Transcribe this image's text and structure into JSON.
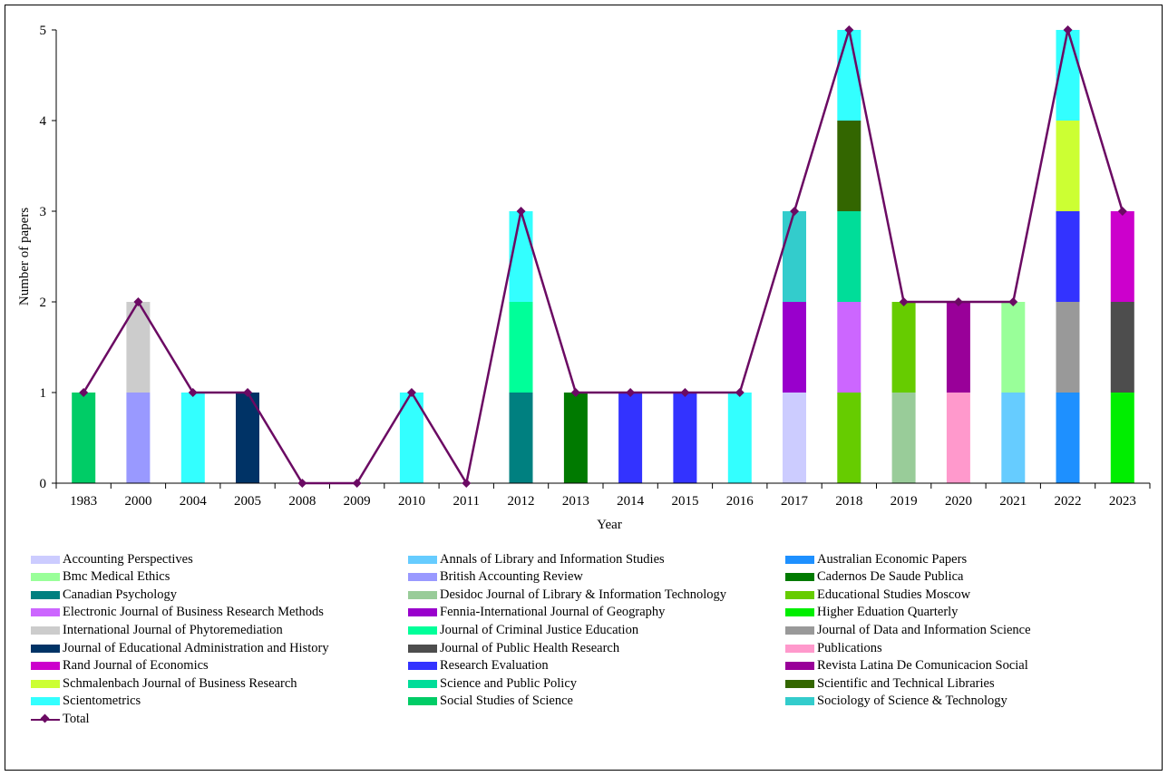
{
  "chart_data": {
    "type": "bar",
    "stacked": true,
    "xlabel": "Year",
    "ylabel": "Number of papers",
    "ylim": [
      0,
      5
    ],
    "yticks": [
      "0",
      "1",
      "2",
      "3",
      "4",
      "5"
    ],
    "grid": false,
    "legend_position": "bottom",
    "categories": [
      "1983",
      "2000",
      "2004",
      "2005",
      "2008",
      "2009",
      "2010",
      "2011",
      "2012",
      "2013",
      "2014",
      "2015",
      "2016",
      "2017",
      "2018",
      "2019",
      "2020",
      "2021",
      "2022",
      "2023"
    ],
    "series": [
      {
        "name": "Accounting Perspectives",
        "color": "#ccccff",
        "values": [
          0,
          0,
          0,
          0,
          0,
          0,
          0,
          0,
          0,
          0,
          0,
          0,
          0,
          1,
          0,
          0,
          0,
          0,
          0,
          0
        ]
      },
      {
        "name": "Annals of Library and Information Studies",
        "color": "#66ccff",
        "values": [
          0,
          0,
          0,
          0,
          0,
          0,
          0,
          0,
          0,
          0,
          0,
          0,
          0,
          0,
          0,
          0,
          0,
          1,
          0,
          0
        ]
      },
      {
        "name": "Australian Economic Papers",
        "color": "#1e90ff",
        "values": [
          0,
          0,
          0,
          0,
          0,
          0,
          0,
          0,
          0,
          0,
          0,
          0,
          0,
          0,
          0,
          0,
          0,
          0,
          1,
          0
        ]
      },
      {
        "name": "Bmc Medical Ethics",
        "color": "#99ff99",
        "values": [
          0,
          0,
          0,
          0,
          0,
          0,
          0,
          0,
          0,
          0,
          0,
          0,
          0,
          0,
          0,
          0,
          0,
          1,
          0,
          0
        ]
      },
      {
        "name": "British Accounting Review",
        "color": "#9999ff",
        "values": [
          0,
          1,
          0,
          0,
          0,
          0,
          0,
          0,
          0,
          0,
          0,
          0,
          0,
          0,
          0,
          0,
          0,
          0,
          0,
          0
        ]
      },
      {
        "name": "Cadernos De Saude Publica",
        "color": "#007a00",
        "values": [
          0,
          0,
          0,
          0,
          0,
          0,
          0,
          0,
          0,
          1,
          0,
          0,
          0,
          0,
          0,
          0,
          0,
          0,
          0,
          0
        ]
      },
      {
        "name": "Canadian Psychology",
        "color": "#008080",
        "values": [
          0,
          0,
          0,
          0,
          0,
          0,
          0,
          0,
          1,
          0,
          0,
          0,
          0,
          0,
          0,
          0,
          0,
          0,
          0,
          0
        ]
      },
      {
        "name": "Desidoc Journal of Library & Information Technology",
        "color": "#99cc99",
        "values": [
          0,
          0,
          0,
          0,
          0,
          0,
          0,
          0,
          0,
          0,
          0,
          0,
          0,
          0,
          0,
          1,
          0,
          0,
          0,
          0
        ]
      },
      {
        "name": "Educational Studies Moscow",
        "color": "#66cc00",
        "values": [
          0,
          0,
          0,
          0,
          0,
          0,
          0,
          0,
          0,
          0,
          0,
          0,
          0,
          0,
          1,
          1,
          0,
          0,
          0,
          0
        ]
      },
      {
        "name": "Electronic Journal of Business Research Methods",
        "color": "#cc66ff",
        "values": [
          0,
          0,
          0,
          0,
          0,
          0,
          0,
          0,
          0,
          0,
          0,
          0,
          0,
          0,
          1,
          0,
          0,
          0,
          0,
          0
        ]
      },
      {
        "name": "Fennia-International Journal of Geography",
        "color": "#9900cc",
        "values": [
          0,
          0,
          0,
          0,
          0,
          0,
          0,
          0,
          0,
          0,
          0,
          0,
          0,
          1,
          0,
          0,
          0,
          0,
          0,
          0
        ]
      },
      {
        "name": "Higher Eduation Quarterly",
        "color": "#00ee00",
        "values": [
          0,
          0,
          0,
          0,
          0,
          0,
          0,
          0,
          0,
          0,
          0,
          0,
          0,
          0,
          0,
          0,
          0,
          0,
          0,
          1
        ]
      },
      {
        "name": "International Journal of Phytoremediation",
        "color": "#cccccc",
        "values": [
          0,
          1,
          0,
          0,
          0,
          0,
          0,
          0,
          0,
          0,
          0,
          0,
          0,
          0,
          0,
          0,
          0,
          0,
          0,
          0
        ]
      },
      {
        "name": "Journal of Criminal Justice Education",
        "color": "#00ff99",
        "values": [
          0,
          0,
          0,
          0,
          0,
          0,
          0,
          0,
          1,
          0,
          0,
          0,
          0,
          0,
          0,
          0,
          0,
          0,
          0,
          0
        ]
      },
      {
        "name": "Journal of Data and Information Science",
        "color": "#999999",
        "values": [
          0,
          0,
          0,
          0,
          0,
          0,
          0,
          0,
          0,
          0,
          0,
          0,
          0,
          0,
          0,
          0,
          0,
          0,
          1,
          0
        ]
      },
      {
        "name": "Journal of Educational Administration and History",
        "color": "#003366",
        "values": [
          0,
          0,
          0,
          1,
          0,
          0,
          0,
          0,
          0,
          0,
          0,
          0,
          0,
          0,
          0,
          0,
          0,
          0,
          0,
          0
        ]
      },
      {
        "name": "Journal of Public Health Research",
        "color": "#4d4d4d",
        "values": [
          0,
          0,
          0,
          0,
          0,
          0,
          0,
          0,
          0,
          0,
          0,
          0,
          0,
          0,
          0,
          0,
          0,
          0,
          0,
          1
        ]
      },
      {
        "name": "Publications",
        "color": "#ff99cc",
        "values": [
          0,
          0,
          0,
          0,
          0,
          0,
          0,
          0,
          0,
          0,
          0,
          0,
          0,
          0,
          0,
          0,
          1,
          0,
          0,
          0
        ]
      },
      {
        "name": "Rand Journal of Economics",
        "color": "#cc00cc",
        "values": [
          0,
          0,
          0,
          0,
          0,
          0,
          0,
          0,
          0,
          0,
          0,
          0,
          0,
          0,
          0,
          0,
          0,
          0,
          0,
          1
        ]
      },
      {
        "name": "Research Evaluation",
        "color": "#3333ff",
        "values": [
          0,
          0,
          0,
          0,
          0,
          0,
          0,
          0,
          0,
          0,
          1,
          1,
          0,
          0,
          0,
          0,
          0,
          0,
          1,
          0
        ]
      },
      {
        "name": "Revista Latina De Comunicacion Social",
        "color": "#990099",
        "values": [
          0,
          0,
          0,
          0,
          0,
          0,
          0,
          0,
          0,
          0,
          0,
          0,
          0,
          0,
          0,
          0,
          1,
          0,
          0,
          0
        ]
      },
      {
        "name": "Schmalenbach Journal of Business Research",
        "color": "#ccff33",
        "values": [
          0,
          0,
          0,
          0,
          0,
          0,
          0,
          0,
          0,
          0,
          0,
          0,
          0,
          0,
          0,
          0,
          0,
          0,
          1,
          0
        ]
      },
      {
        "name": "Science and Public Policy",
        "color": "#00dd99",
        "values": [
          0,
          0,
          0,
          0,
          0,
          0,
          0,
          0,
          0,
          0,
          0,
          0,
          0,
          0,
          1,
          0,
          0,
          0,
          0,
          0
        ]
      },
      {
        "name": "Scientific and Technical Libraries",
        "color": "#336600",
        "values": [
          0,
          0,
          0,
          0,
          0,
          0,
          0,
          0,
          0,
          0,
          0,
          0,
          0,
          0,
          1,
          0,
          0,
          0,
          0,
          0
        ]
      },
      {
        "name": "Scientometrics",
        "color": "#33ffff",
        "values": [
          0,
          0,
          1,
          0,
          0,
          0,
          1,
          0,
          1,
          0,
          0,
          0,
          1,
          0,
          1,
          0,
          0,
          0,
          1,
          0
        ]
      },
      {
        "name": "Social Studies of Science",
        "color": "#00cc66",
        "values": [
          1,
          0,
          0,
          0,
          0,
          0,
          0,
          0,
          0,
          0,
          0,
          0,
          0,
          0,
          0,
          0,
          0,
          0,
          0,
          0
        ]
      },
      {
        "name": "Sociology of Science & Technology",
        "color": "#33cccc",
        "values": [
          0,
          0,
          0,
          0,
          0,
          0,
          0,
          0,
          0,
          0,
          0,
          0,
          0,
          1,
          0,
          0,
          0,
          0,
          0,
          0
        ]
      }
    ],
    "line": {
      "name": "Total",
      "color": "#6b0a63",
      "values": [
        1,
        2,
        1,
        1,
        0,
        0,
        1,
        0,
        3,
        1,
        1,
        1,
        1,
        3,
        5,
        2,
        2,
        2,
        5,
        3
      ]
    }
  }
}
